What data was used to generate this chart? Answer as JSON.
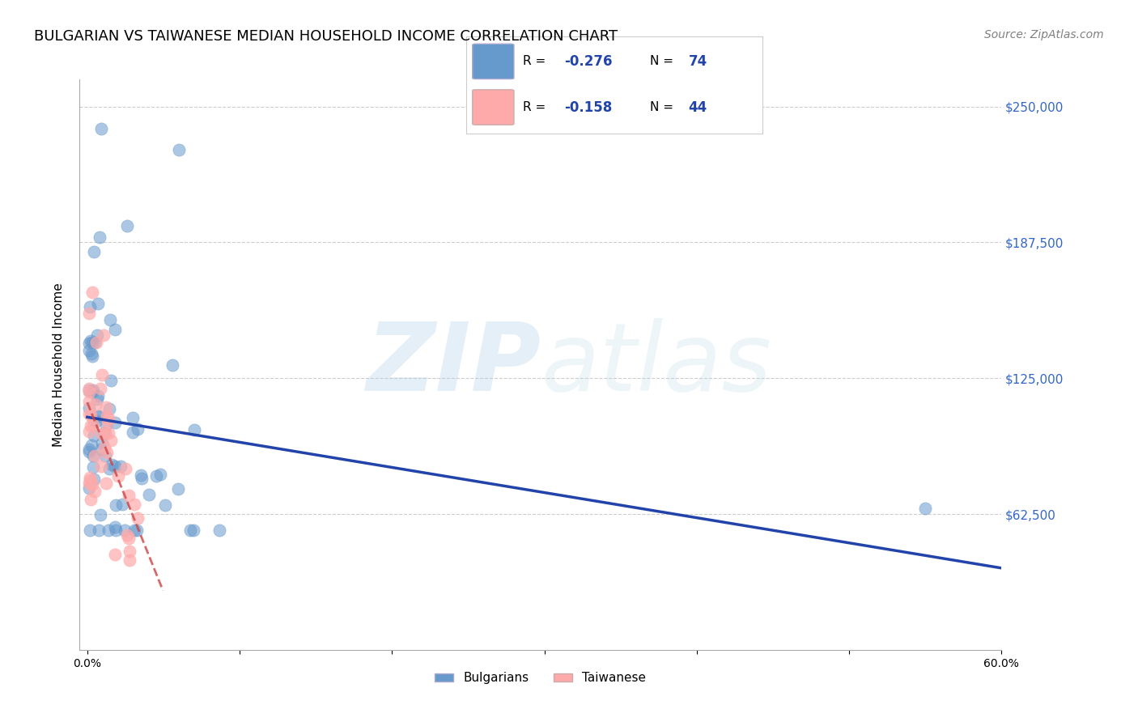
{
  "title": "BULGARIAN VS TAIWANESE MEDIAN HOUSEHOLD INCOME CORRELATION CHART",
  "source": "Source: ZipAtlas.com",
  "ylabel": "Median Household Income",
  "xlabel": "",
  "xlim": [
    0.0,
    0.6
  ],
  "ylim": [
    0,
    262500
  ],
  "ytick_vals": [
    62500,
    125000,
    187500,
    250000
  ],
  "ytick_labels": [
    "$62,500",
    "$125,000",
    "$187,500",
    "$250,000"
  ],
  "xtick_vals": [
    0.0,
    0.1,
    0.2,
    0.3,
    0.4,
    0.5,
    0.6
  ],
  "xtick_labels": [
    "0.0%",
    "",
    "",
    "",
    "",
    "",
    "60.0%"
  ],
  "bg_color": "#ffffff",
  "grid_color": "#cccccc",
  "blue_color": "#6699cc",
  "pink_color": "#ffaaaa",
  "blue_line_color": "#2244aa",
  "pink_line_color": "#cc4444",
  "legend_bottom_blue": "Bulgarians",
  "legend_bottom_pink": "Taiwanese",
  "watermark_zip": "ZIP",
  "watermark_atlas": "atlas",
  "title_fontsize": 13,
  "axis_label_fontsize": 11,
  "tick_fontsize": 10,
  "right_tick_color": "#3366cc"
}
